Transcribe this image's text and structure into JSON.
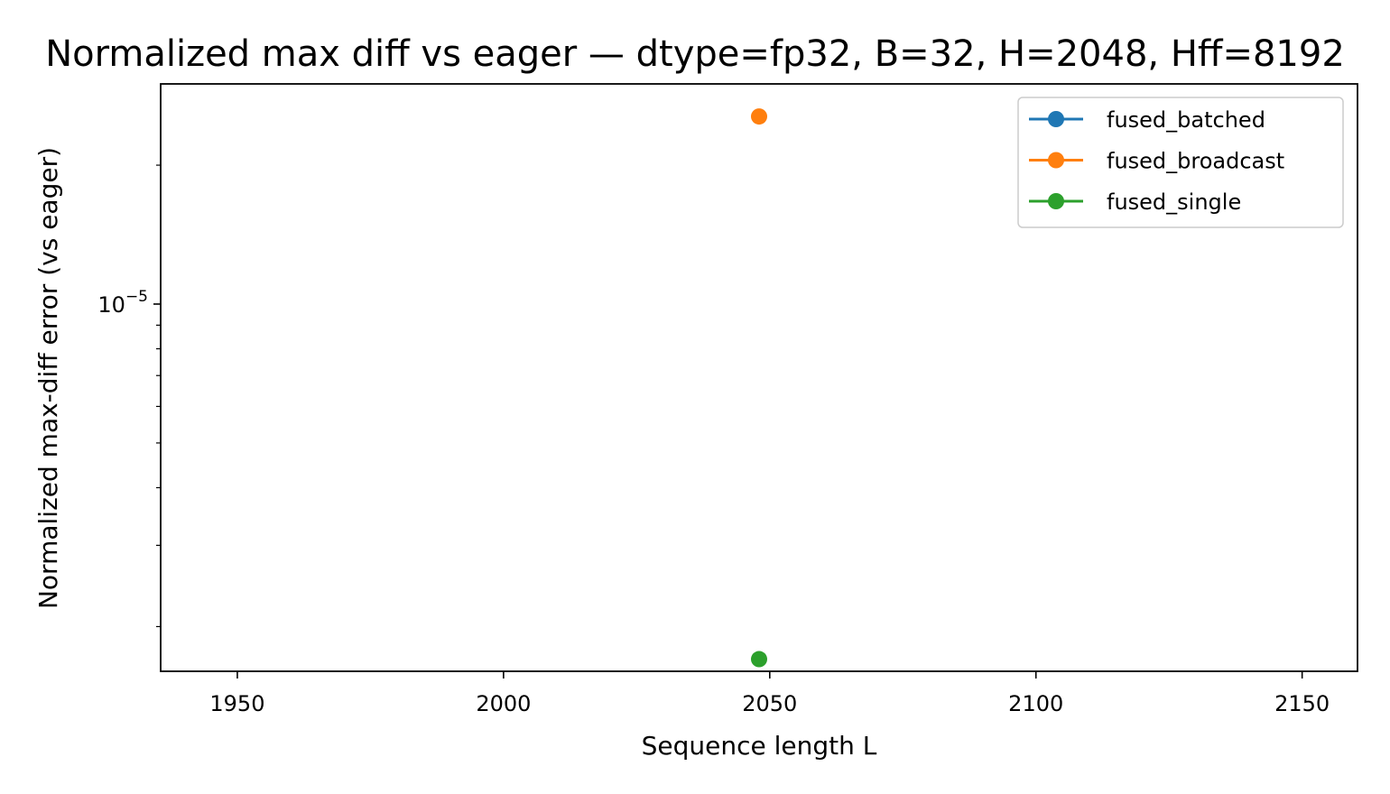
{
  "chart_data": {
    "type": "line",
    "title": "Normalized max diff vs eager — dtype=fp32, B=32, H=2048, Hff=8192",
    "xlabel": "Sequence length L",
    "ylabel": "Normalized max-diff error (vs eager)",
    "xlim": [
      1935.6,
      2160.4
    ],
    "ylim": [
      1.6e-06,
      3e-05
    ],
    "yscale": "log",
    "x_ticks": [
      1950,
      2000,
      2050,
      2100,
      2150
    ],
    "x_tick_labels": [
      "1950",
      "2000",
      "2050",
      "2100",
      "2150"
    ],
    "y_major_tick": {
      "value": 1e-05,
      "base": "10",
      "exponent": "−5"
    },
    "y_minor_ticks": [
      2e-06,
      3e-06,
      4e-06,
      5e-06,
      6e-06,
      7e-06,
      8e-06,
      9e-06,
      2e-05
    ],
    "grid": false,
    "legend_position": "top-right",
    "series": [
      {
        "name": "fused_batched",
        "color": "#1f77b4",
        "x": [
          2048
        ],
        "y": [
          null
        ]
      },
      {
        "name": "fused_broadcast",
        "color": "#ff7f0e",
        "x": [
          2048
        ],
        "y": [
          2.55e-05
        ]
      },
      {
        "name": "fused_single",
        "color": "#2ca02c",
        "x": [
          2048
        ],
        "y": [
          1.7e-06
        ]
      }
    ]
  }
}
